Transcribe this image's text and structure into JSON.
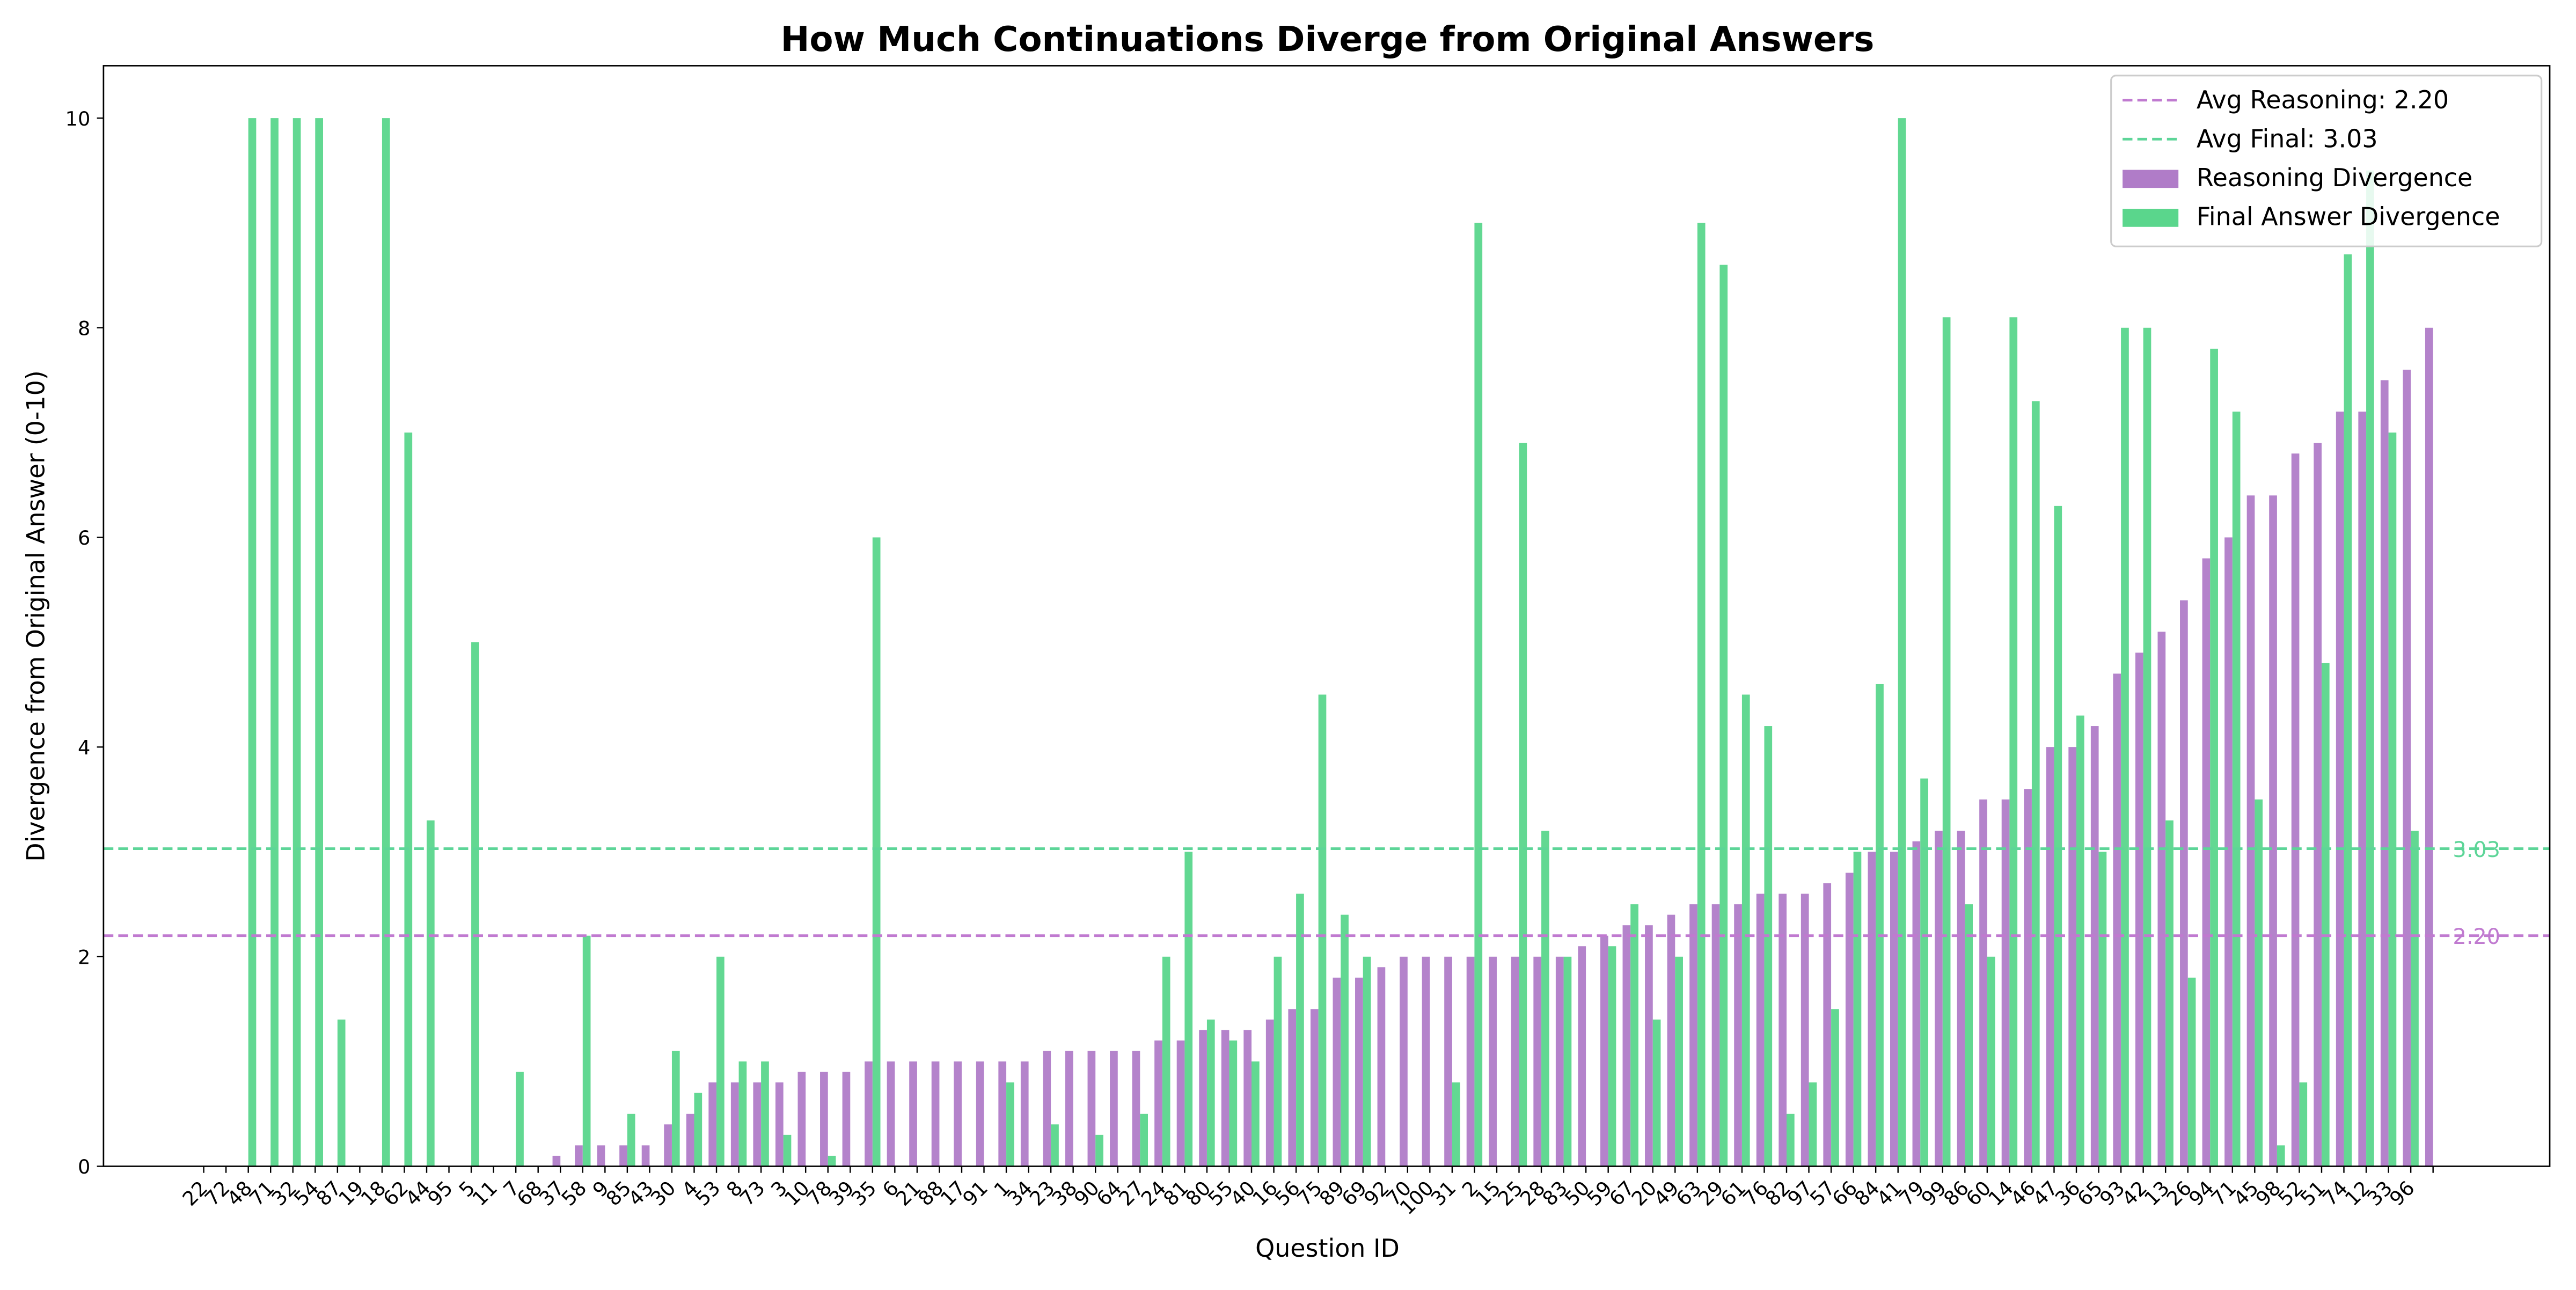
{
  "chart_data": {
    "type": "bar",
    "title": "How Much Continuations Diverge from Original Answers",
    "x_label": "Question ID",
    "y_label": "Divergence from Original Answer (0-10)",
    "categories": [
      "22",
      "72",
      "48",
      "71",
      "32",
      "54",
      "87",
      "19",
      "18",
      "62",
      "44",
      "95",
      "5",
      "11",
      "7",
      "68",
      "37",
      "58",
      "9",
      "85",
      "43",
      "30",
      "4",
      "53",
      "8",
      "73",
      "3",
      "10",
      "78",
      "39",
      "35",
      "6",
      "21",
      "88",
      "17",
      "91",
      "1",
      "34",
      "23",
      "38",
      "90",
      "64",
      "27",
      "24",
      "81",
      "80",
      "55",
      "40",
      "16",
      "56",
      "75",
      "89",
      "69",
      "92",
      "70",
      "100",
      "31",
      "2",
      "15",
      "25",
      "28",
      "83",
      "50",
      "59",
      "67",
      "20",
      "49",
      "63",
      "29",
      "61",
      "76",
      "82",
      "97",
      "57",
      "66",
      "84",
      "41",
      "79",
      "99",
      "86",
      "60",
      "14",
      "46",
      "47",
      "36",
      "65",
      "93",
      "42",
      "13",
      "26",
      "94",
      "71",
      "45",
      "98",
      "52",
      "51",
      "74",
      "12",
      "33",
      "96",
      null
    ],
    "series": [
      {
        "name": "Reasoning Divergence",
        "color": "#b07cc8",
        "values": [
          0,
          0,
          0,
          0,
          0,
          0,
          0,
          0,
          0,
          0,
          0,
          0,
          0,
          0,
          0,
          0,
          0.1,
          0.2,
          0.2,
          0.2,
          0.2,
          0.4,
          0.5,
          0.8,
          0.8,
          0.8,
          0.8,
          0.9,
          0.9,
          0.9,
          1,
          1,
          1,
          1,
          1,
          1,
          1,
          1,
          1.1,
          1.1,
          1.1,
          1.1,
          1.1,
          1.2,
          1.2,
          1.3,
          1.3,
          1.3,
          1.4,
          1.5,
          1.5,
          1.8,
          1.8,
          1.9,
          2,
          2,
          2,
          2,
          2,
          2,
          2,
          2,
          2.1,
          2.2,
          2.3,
          2.3,
          2.4,
          2.5,
          2.5,
          2.5,
          2.6,
          2.6,
          2.6,
          2.7,
          2.8,
          3,
          3,
          3.1,
          3.2,
          3.2,
          3.5,
          3.5,
          3.6,
          4,
          4,
          4.2,
          4.7,
          4.9,
          5.1,
          5.4,
          5.8,
          6,
          6.4,
          6.4,
          6.8,
          6.9,
          7.2,
          7.2,
          7.5,
          7.6,
          8
        ]
      },
      {
        "name": "Final Answer Divergence",
        "color": "#5ad68c",
        "values": [
          0,
          0,
          10,
          10,
          10,
          10,
          1.4,
          0,
          10,
          7,
          3.3,
          0,
          5,
          0,
          0.9,
          0,
          0,
          2.2,
          0,
          0.5,
          0,
          1.1,
          0.7,
          2,
          1,
          1,
          0.3,
          0,
          0.1,
          0,
          6,
          0,
          0,
          0,
          0,
          0,
          0.8,
          0,
          0.4,
          0,
          0.3,
          0,
          0.5,
          2,
          3,
          1.4,
          1.2,
          1,
          2,
          2.6,
          4.5,
          2.4,
          2,
          0,
          0,
          0,
          0.8,
          9,
          0,
          6.9,
          3.2,
          2,
          0,
          2.1,
          2.5,
          1.4,
          2,
          9,
          8.6,
          4.5,
          4.2,
          0.5,
          0.8,
          1.5,
          3,
          4.6,
          10,
          3.7,
          8.1,
          2.5,
          2,
          8.1,
          7.3,
          6.3,
          4.3,
          3,
          8,
          8,
          3.3,
          1.8,
          7.8,
          7.2,
          3.5,
          0.2,
          0.8,
          4.8,
          8.7,
          9.5,
          7,
          3.2,
          0
        ]
      }
    ],
    "reference_lines": [
      {
        "name": "Avg Reasoning: 2.20",
        "value": 2.2,
        "label": "2.20",
        "color": "#c07ad0"
      },
      {
        "name": "Avg Final: 3.03",
        "value": 3.03,
        "label": "3.03",
        "color": "#5dd598"
      }
    ],
    "ylim": [
      0,
      10.5
    ],
    "yticks": [
      0,
      2,
      4,
      6,
      8,
      10
    ],
    "legend": "upper right"
  }
}
